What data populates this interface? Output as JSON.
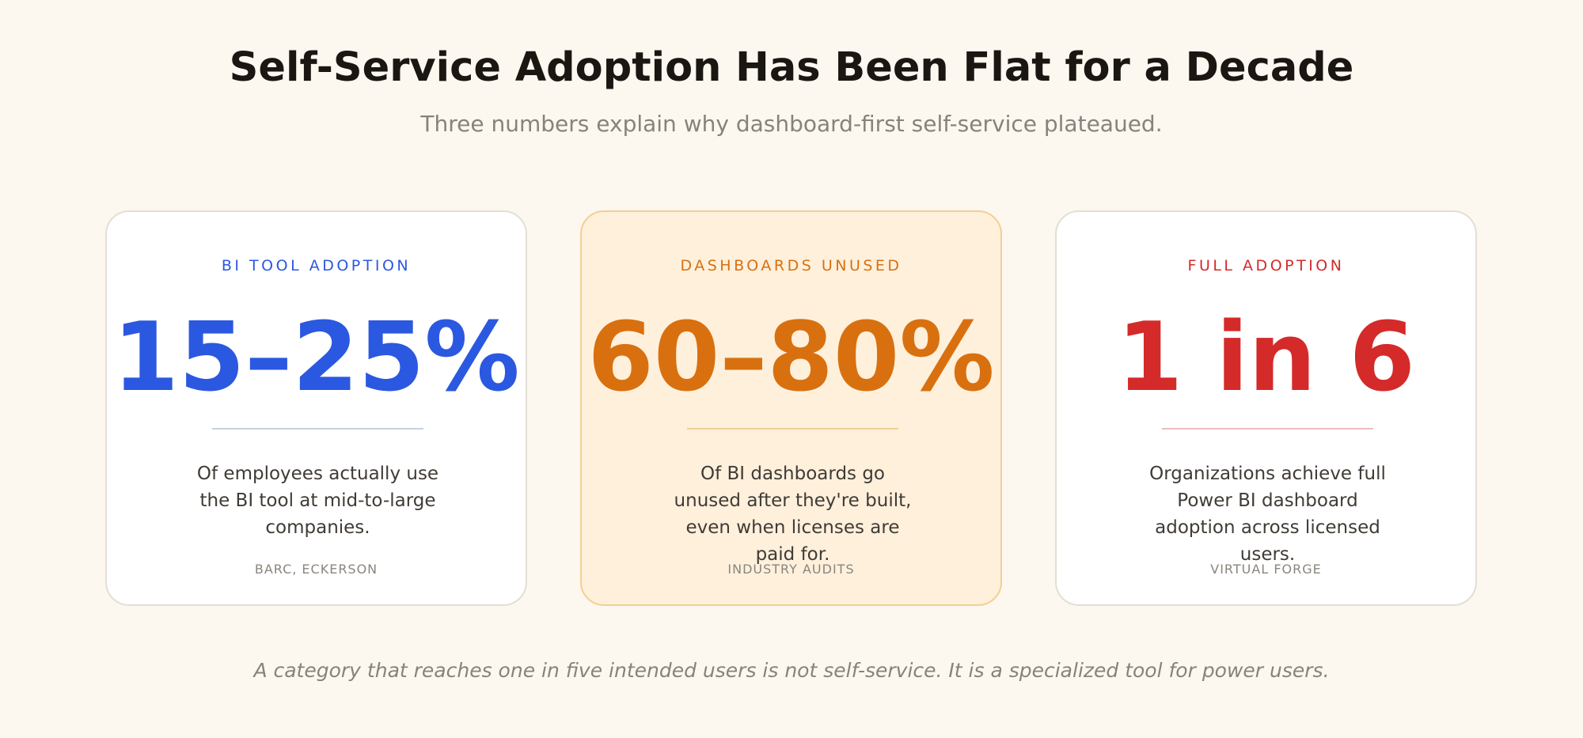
{
  "header": {
    "title": "Self-Service Adoption Has Been Flat for a Decade",
    "subtitle": "Three numbers explain why dashboard-first self-service plateaued."
  },
  "cards": [
    {
      "label": "BI TOOL ADOPTION",
      "value": "15–25%",
      "description": "Of employees actually use the BI tool at mid-to-large companies.",
      "source": "BARC, ECKERSON",
      "accent_color": "#2b58e0"
    },
    {
      "label": "DASHBOARDS UNUSED",
      "value": "60–80%",
      "description": "Of BI dashboards go unused after they're built, even when licenses are paid for.",
      "source": "INDUSTRY AUDITS",
      "accent_color": "#d9700f"
    },
    {
      "label": "FULL ADOPTION",
      "value": "1 in 6",
      "description": "Organizations achieve full Power BI dashboard adoption across licensed users.",
      "source": "VIRTUAL FORGE",
      "accent_color": "#d42a2a"
    }
  ],
  "footer": {
    "note": "A category that reaches one in five intended users is not self-service. It is a specialized tool for power users."
  }
}
